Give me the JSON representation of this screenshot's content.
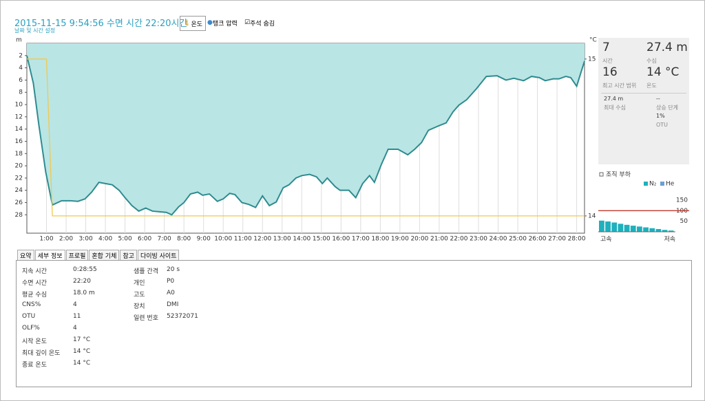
{
  "header": {
    "title": "2015-11-15 9:54:56 수면 시간 22:20시간",
    "subtitle": "날짜 및 시간 설정"
  },
  "toolbar": [
    "온도",
    "탱크 압력",
    "주석 숨김"
  ],
  "chart_data": [
    {
      "type": "line",
      "y_unit": "m",
      "y2_unit": "°C",
      "x": [
        0,
        0.33,
        0.61,
        0.96,
        1.3,
        1.77,
        2.2,
        2.6,
        2.96,
        3.3,
        3.67,
        4.0,
        4.35,
        4.7,
        5.0,
        5.35,
        5.7,
        6.05,
        6.4,
        6.75,
        7.1,
        7.38,
        7.73,
        8.0,
        8.33,
        8.7,
        8.95,
        9.3,
        9.7,
        10.0,
        10.33,
        10.6,
        10.95,
        11.3,
        11.65,
        12.0,
        12.35,
        12.7,
        13.05,
        13.35,
        13.7,
        14.0,
        14.4,
        14.75,
        15.05,
        15.3,
        15.7,
        15.95,
        16.4,
        16.75,
        17.1,
        17.45,
        17.7,
        18.05,
        18.4,
        18.9,
        19.4,
        19.75,
        20.1,
        20.45,
        20.95,
        21.35,
        21.7,
        22.0,
        22.4,
        22.9,
        23.4,
        23.95,
        24.4,
        24.8,
        25.3,
        25.7,
        26.1,
        26.4,
        26.8,
        27.1,
        27.45,
        27.7,
        28.0,
        28.4
      ],
      "series": [
        {
          "color": "#2e8b8f",
          "fill": "#b9e5e5",
          "values": [
            2,
            6.5,
            13.3,
            21,
            26.4,
            25.7,
            25.7,
            25.8,
            25.4,
            24.3,
            22.7,
            22.9,
            23.1,
            24,
            25.2,
            26.5,
            27.4,
            26.9,
            27.4,
            27.5,
            27.6,
            28,
            26.7,
            26,
            24.6,
            24.3,
            24.8,
            24.6,
            25.8,
            25.4,
            24.5,
            24.7,
            26,
            26.3,
            26.8,
            24.9,
            26.5,
            25.9,
            23.6,
            23.1,
            22,
            21.6,
            21.4,
            21.8,
            22.9,
            22,
            23.4,
            24,
            24,
            25.2,
            22.9,
            21.6,
            22.7,
            19.8,
            17.3,
            17.3,
            18.2,
            17.3,
            16.2,
            14.2,
            13.5,
            13,
            11.2,
            10.1,
            9.2,
            7.4,
            5.4,
            5.3,
            6,
            5.7,
            6.1,
            5.4,
            5.6,
            6.1,
            5.8,
            5.8,
            5.4,
            5.6,
            7,
            2.9
          ]
        },
        {
          "color": "#f2c84b",
          "axis": "y2",
          "x": [
            0,
            1.0,
            1.3,
            28.4
          ],
          "values": [
            15,
            15,
            14,
            14
          ]
        }
      ],
      "xlim": [
        0,
        28.4
      ],
      "ylim": [
        31,
        0
      ],
      "y2lim": [
        13.89,
        15.1
      ],
      "grid": "x",
      "yticks": [
        2,
        4,
        6,
        8,
        10,
        12,
        14,
        16,
        18,
        20,
        22,
        24,
        26,
        28
      ],
      "y2ticks": [
        14,
        15
      ],
      "xticks": [
        {
          "value": 1,
          "label": "1:00"
        },
        {
          "value": 2,
          "label": "2:00"
        },
        {
          "value": 3,
          "label": "3:00"
        },
        {
          "value": 4,
          "label": "4:00"
        },
        {
          "value": 5,
          "label": "5:00"
        },
        {
          "value": 6,
          "label": "6:00"
        },
        {
          "value": 7,
          "label": "7:00"
        },
        {
          "value": 8,
          "label": "8:00"
        },
        {
          "value": 9,
          "label": "9:00"
        },
        {
          "value": 10,
          "label": "10:00"
        },
        {
          "value": 11,
          "label": "11:00"
        },
        {
          "value": 12,
          "label": "12:00"
        },
        {
          "value": 13,
          "label": "13:00"
        },
        {
          "value": 14,
          "label": "14:00"
        },
        {
          "value": 15,
          "label": "15:00"
        },
        {
          "value": 16,
          "label": "16:00"
        },
        {
          "value": 17,
          "label": "17:00"
        },
        {
          "value": 18,
          "label": "18:00"
        },
        {
          "value": 19,
          "label": "19:00"
        },
        {
          "value": 20,
          "label": "20:00"
        },
        {
          "value": 21,
          "label": "21:00"
        },
        {
          "value": 22,
          "label": "22:00"
        },
        {
          "value": 23,
          "label": "23:00"
        },
        {
          "value": 24,
          "label": "24:00"
        },
        {
          "value": 25,
          "label": "25:00"
        },
        {
          "value": 26,
          "label": "26:00"
        },
        {
          "value": 27,
          "label": "27:00"
        },
        {
          "value": 28,
          "label": "28:00"
        }
      ]
    },
    {
      "type": "bar",
      "title": "조직 부하",
      "categories": [
        null,
        null,
        null,
        null,
        null,
        null,
        null,
        null,
        null,
        null,
        null,
        null
      ],
      "series": [
        {
          "name": "N₂",
          "color": "#1fb0bd",
          "values": [
            53,
            49,
            44,
            38,
            33,
            29,
            25,
            21,
            17,
            13,
            9,
            6
          ]
        },
        {
          "name": "He",
          "color": "#6d9fd3",
          "values": [
            0,
            0,
            0,
            0,
            0,
            0,
            0,
            0,
            0,
            0,
            0,
            0
          ]
        }
      ],
      "ylim": [
        0,
        150
      ],
      "yticks": [
        50,
        100,
        150
      ],
      "reference_line": 100,
      "reference_color": "#c0392b",
      "x_end_labels": [
        "고속",
        "저속"
      ]
    }
  ],
  "stats": {
    "top": [
      {
        "value": "7",
        "label": "시간"
      },
      {
        "value": "27.4 m",
        "label": "수심"
      },
      {
        "value": "16",
        "label": "최고 시간 범위"
      },
      {
        "value": "14 °C",
        "label": "온도"
      }
    ],
    "lower": [
      {
        "value": "27.4 m",
        "label": "최대 수심"
      },
      {
        "value": "--",
        "label": "상승 단계"
      }
    ],
    "extra": [
      "1%",
      "OTU"
    ]
  },
  "tabs": [
    "요약",
    "세부 정보",
    "프로필",
    "혼합 기체",
    "참고",
    "다이빙 사이트"
  ],
  "details": {
    "left": [
      [
        "지속 시간",
        "0:28:55"
      ],
      [
        "수면 시간",
        "22:20"
      ],
      [
        "평균 수심",
        "18.0 m"
      ],
      [
        "CNS%",
        "4"
      ],
      [
        "OTU",
        "11"
      ],
      [
        "OLF%",
        "4"
      ],
      [
        "시작 온도",
        "17 °C"
      ],
      [
        "최대 깊이 온도",
        "14 °C"
      ],
      [
        "종료 온도",
        "14 °C"
      ]
    ],
    "right": [
      [
        "샘플 간격",
        "20 s"
      ],
      [
        "개인",
        "P0"
      ],
      [
        "고도",
        "A0"
      ],
      [
        "장치",
        "DMI"
      ],
      [
        "일련 번호",
        "52372071"
      ]
    ]
  }
}
